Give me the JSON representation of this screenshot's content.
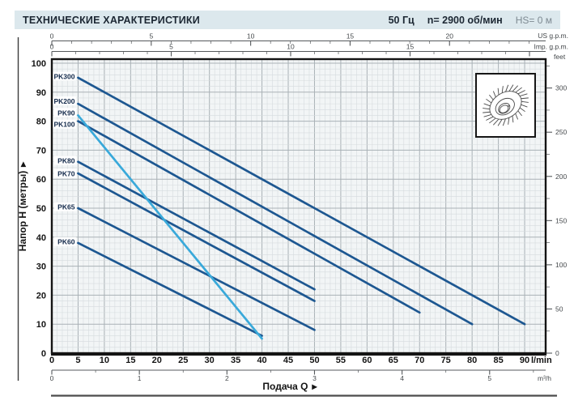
{
  "header": {
    "title": "ТЕХНИЧЕСКИЕ ХАРАКТЕРИСТИКИ",
    "frequency": "50 Гц",
    "speed": "n= 2900 об/мин",
    "suction_head": "HS= 0 м"
  },
  "chart_data": {
    "type": "line",
    "title": "Pump performance curves PK series",
    "xlabel": "Подача Q",
    "ylabel": "Напор H (метры)",
    "arrow_glyph": "▸",
    "grid": "on",
    "x_axis": {
      "unit": "l/min",
      "min": 0,
      "max": 90,
      "major_step": 5,
      "minor_step": 1,
      "tick_labels": [
        0,
        5,
        10,
        15,
        20,
        25,
        30,
        35,
        40,
        45,
        50,
        55,
        60,
        65,
        70,
        75,
        80,
        85,
        90
      ]
    },
    "y_axis": {
      "unit": "метры",
      "min": 0,
      "max": 100,
      "major_step": 10,
      "minor_step": 2,
      "tick_labels": [
        0,
        10,
        20,
        30,
        40,
        50,
        60,
        70,
        80,
        90,
        100
      ]
    },
    "top_axes": [
      {
        "name": "US g.p.m.",
        "lmin_per_unit": 3.785,
        "major_step": 5,
        "minor_step": 1,
        "tick_labels": [
          0,
          5,
          10,
          15,
          20
        ]
      },
      {
        "name": "Imp. g.p.m.",
        "lmin_per_unit": 4.546,
        "major_step": 5,
        "minor_step": 1,
        "tick_labels": [
          0,
          5,
          10,
          15
        ]
      }
    ],
    "right_axis": {
      "name": "feet",
      "m_per_unit": 0.3048,
      "major_step": 50,
      "minor_step": 25,
      "tick_labels": [
        0,
        50,
        100,
        150,
        200,
        250,
        300
      ]
    },
    "bottom_axis": {
      "name": "m³/h",
      "lmin_per_unit": 16.667,
      "major_step": 1,
      "minor_step": 0.5,
      "tick_labels": [
        0,
        1,
        2,
        3,
        4,
        5
      ]
    },
    "series": [
      {
        "name": "PK300",
        "color": "#1d5791",
        "label_h": 95.5,
        "points": [
          [
            5,
            95
          ],
          [
            90,
            10
          ]
        ]
      },
      {
        "name": "PK200",
        "color": "#1d5791",
        "label_h": 87,
        "points": [
          [
            5,
            86
          ],
          [
            80,
            10
          ]
        ]
      },
      {
        "name": "PK90",
        "color": "#39a9da",
        "label_h": 83,
        "points": [
          [
            5,
            82
          ],
          [
            40,
            5
          ]
        ]
      },
      {
        "name": "PK100",
        "color": "#1d5791",
        "label_h": 79,
        "points": [
          [
            5,
            80
          ],
          [
            70,
            14
          ]
        ]
      },
      {
        "name": "PK80",
        "color": "#1d5791",
        "label_h": 66.5,
        "points": [
          [
            5,
            66
          ],
          [
            50,
            22
          ]
        ]
      },
      {
        "name": "PK70",
        "color": "#1d5791",
        "label_h": 62,
        "points": [
          [
            5,
            62
          ],
          [
            50,
            18
          ]
        ]
      },
      {
        "name": "PK65",
        "color": "#1d5791",
        "label_h": 50.5,
        "points": [
          [
            5,
            50
          ],
          [
            50,
            8
          ]
        ]
      },
      {
        "name": "PK60",
        "color": "#1d5791",
        "label_h": 38.5,
        "points": [
          [
            5,
            38
          ],
          [
            40,
            6
          ]
        ]
      }
    ],
    "series_label_q": 5,
    "inset": {
      "name": "impeller-drawing"
    }
  },
  "colors": {
    "curve_navy": "#1d5791",
    "curve_cyan": "#39a9da",
    "header_bg": "#dce8ed",
    "plot_bg": "#f2f5f6",
    "grid_minor": "#d6dbde",
    "grid_major": "#a9b1b6",
    "border": "#141414"
  }
}
